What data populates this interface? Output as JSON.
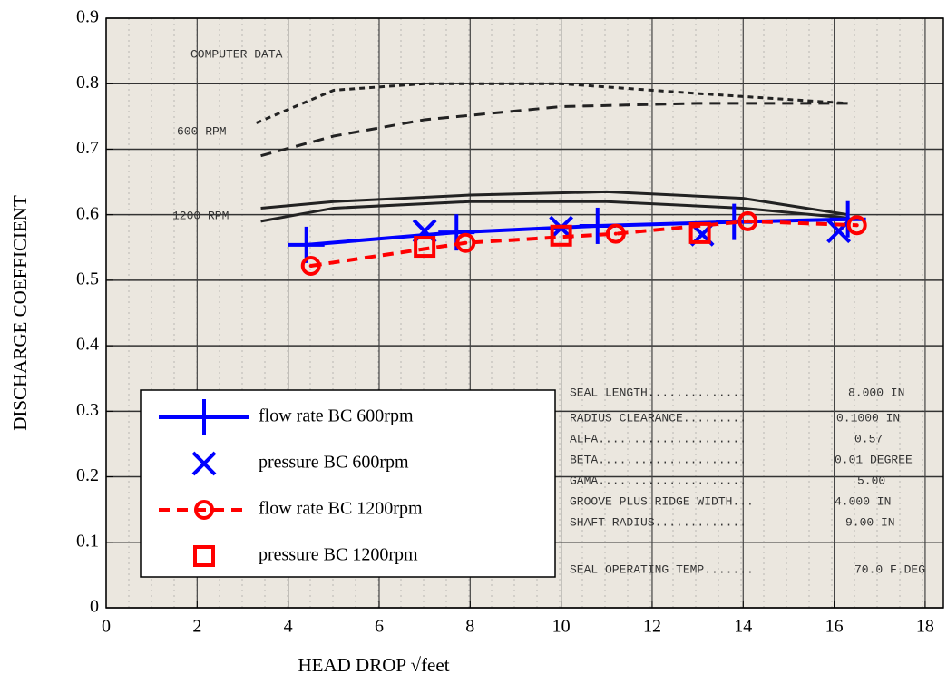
{
  "chart_data": {
    "type": "line",
    "xlabel": "HEAD DROP √feet",
    "ylabel": "DISCHARGE COEFFICIENT",
    "xlim": [
      0,
      18.4
    ],
    "ylim": [
      0,
      0.9
    ],
    "xticks": [
      0,
      2,
      4,
      6,
      8,
      10,
      12,
      14,
      16,
      18
    ],
    "yticks": [
      0,
      0.1,
      0.2,
      0.3,
      0.4,
      0.5,
      0.6,
      0.7,
      0.8,
      0.9
    ],
    "grid": true,
    "legend_position": "lower left",
    "series": [
      {
        "name": "flow rate BC 600rpm",
        "color": "#0000ff",
        "marker": "plus",
        "linestyle": "solid",
        "x": [
          4.4,
          7.7,
          10.8,
          13.8,
          16.3
        ],
        "values": [
          0.554,
          0.573,
          0.583,
          0.589,
          0.593
        ]
      },
      {
        "name": "pressure BC 600rpm",
        "color": "#0000ff",
        "marker": "x",
        "linestyle": "none",
        "x": [
          7.0,
          10.0,
          13.1,
          16.1
        ],
        "values": [
          0.575,
          0.58,
          0.57,
          0.575
        ]
      },
      {
        "name": "flow rate BC 1200rpm",
        "color": "#ff0000",
        "marker": "circle",
        "linestyle": "dashed",
        "x": [
          4.5,
          7.9,
          11.2,
          14.1,
          16.5
        ],
        "values": [
          0.522,
          0.557,
          0.571,
          0.59,
          0.584
        ]
      },
      {
        "name": "pressure BC 1200rpm",
        "color": "#ff0000",
        "marker": "square",
        "linestyle": "none",
        "x": [
          7.0,
          10.0,
          13.05
        ],
        "values": [
          0.551,
          0.568,
          0.572
        ]
      }
    ],
    "scan_curves": [
      {
        "linestyle": "dotted",
        "x": [
          3.3,
          5,
          7,
          10,
          13,
          16.3
        ],
        "values": [
          0.74,
          0.79,
          0.8,
          0.8,
          0.785,
          0.77
        ]
      },
      {
        "linestyle": "dashed",
        "x": [
          3.4,
          5,
          7,
          10,
          13,
          16.3
        ],
        "values": [
          0.69,
          0.72,
          0.745,
          0.765,
          0.77,
          0.77
        ]
      },
      {
        "linestyle": "solid",
        "x": [
          3.4,
          5,
          8,
          11,
          14,
          16.3
        ],
        "values": [
          0.61,
          0.62,
          0.63,
          0.635,
          0.625,
          0.6
        ]
      },
      {
        "linestyle": "solid",
        "x": [
          3.4,
          5,
          8,
          11,
          14,
          16.3
        ],
        "values": [
          0.59,
          0.61,
          0.62,
          0.62,
          0.61,
          0.595
        ]
      }
    ],
    "annotations": [
      "COMPUTER DATA",
      "600 RPM",
      "1200 RPM",
      "SEAL LENGTH..............",
      "RADIUS CLEARANCE.........",
      "ALFA.....................",
      "BETA.....................",
      "GAMA.....................",
      "GROOVE PLUS RIDGE WIDTH...",
      "SHAFT RADIUS.............",
      "SEAL OPERATING TEMP.......",
      "8.000 IN",
      "0.1000 IN",
      "0.57",
      "0.01 DEGREE",
      "5.00",
      "4.000 IN",
      "9.00 IN",
      "70.0 F.DEG"
    ]
  }
}
